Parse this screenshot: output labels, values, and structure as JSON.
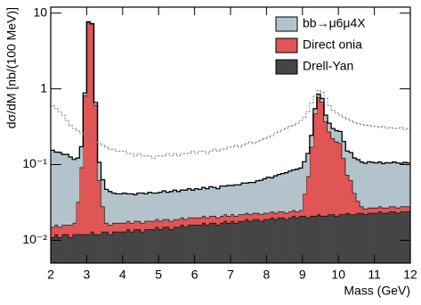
{
  "chart_data": {
    "type": "histogram",
    "xlabel": "Mass (GeV)",
    "ylabel": "dσ/dM [nb/(100 MeV)]",
    "yscale": "log",
    "ylim": [
      0.005,
      12
    ],
    "xlim": [
      2,
      12
    ],
    "yticks": [
      {
        "value": 0.01,
        "label": "10⁻²"
      },
      {
        "value": 0.1,
        "label": "10⁻¹"
      },
      1,
      10
    ],
    "xticks": [
      2,
      3,
      4,
      5,
      6,
      7,
      8,
      9,
      10,
      11,
      12
    ],
    "legend": "top-right",
    "bins": [
      2,
      2.1,
      2.2,
      2.3,
      2.4,
      2.5,
      2.6,
      2.7,
      2.8,
      2.9,
      3,
      3.1,
      3.2,
      3.3,
      3.4,
      3.5,
      3.6,
      3.7,
      3.8,
      3.9,
      4,
      4.1,
      4.2,
      4.3,
      4.4,
      4.5,
      4.6,
      4.7,
      4.8,
      4.9,
      5,
      5.1,
      5.2,
      5.3,
      5.4,
      5.5,
      5.6,
      5.7,
      5.8,
      5.9,
      6,
      6.1,
      6.2,
      6.3,
      6.4,
      6.5,
      6.6,
      6.7,
      6.8,
      6.9,
      7,
      7.1,
      7.2,
      7.3,
      7.4,
      7.5,
      7.6,
      7.7,
      7.8,
      7.9,
      8,
      8.1,
      8.2,
      8.3,
      8.4,
      8.5,
      8.6,
      8.7,
      8.8,
      8.9,
      9,
      9.1,
      9.2,
      9.3,
      9.4,
      9.5,
      9.6,
      9.7,
      9.8,
      9.9,
      10,
      10.1,
      10.2,
      10.3,
      10.4,
      10.5,
      10.6,
      10.7,
      10.8,
      10.9,
      11,
      11.1,
      11.2,
      11.3,
      11.4,
      11.5,
      11.6,
      11.7,
      11.8,
      11.9,
      12
    ],
    "series": [
      {
        "name": "bb→μ6μ4X",
        "color": "#b3c3cc",
        "values": [
          0.14,
          0.13,
          0.13,
          0.12,
          0.12,
          0.11,
          0.1,
          0.09,
          0.08,
          0.07,
          0.07,
          0.06,
          0.05,
          0.045,
          0.035,
          0.03,
          0.028,
          0.025,
          0.024,
          0.024,
          0.025,
          0.023,
          0.024,
          0.022,
          0.024,
          0.025,
          0.023,
          0.025,
          0.024,
          0.023,
          0.025,
          0.026,
          0.024,
          0.026,
          0.027,
          0.025,
          0.026,
          0.027,
          0.028,
          0.026,
          0.028,
          0.027,
          0.029,
          0.028,
          0.03,
          0.029,
          0.028,
          0.031,
          0.03,
          0.032,
          0.031,
          0.033,
          0.032,
          0.035,
          0.034,
          0.036,
          0.035,
          0.038,
          0.04,
          0.042,
          0.045,
          0.043,
          0.048,
          0.05,
          0.052,
          0.055,
          0.058,
          0.06,
          0.063,
          0.065,
          0.068,
          0.07,
          0.072,
          0.075,
          0.078,
          0.075,
          0.078,
          0.08,
          0.077,
          0.08,
          0.082,
          0.08,
          0.078,
          0.082,
          0.08,
          0.083,
          0.08,
          0.078,
          0.082,
          0.08,
          0.078,
          0.08,
          0.076,
          0.079,
          0.077,
          0.08,
          0.078,
          0.076,
          0.079,
          0.077
        ]
      },
      {
        "name": "Direct onia",
        "color": "#e05555",
        "values": [
          0.004,
          0.004,
          0.004,
          0.004,
          0.004,
          0.005,
          0.005,
          0.02,
          0.08,
          0.8,
          7.6,
          7.2,
          0.6,
          0.05,
          0.015,
          0.004,
          0.004,
          0.004,
          0.004,
          0.004,
          0.004,
          0.004,
          0.004,
          0.004,
          0.004,
          0.004,
          0.004,
          0.004,
          0.004,
          0.004,
          0.004,
          0.004,
          0.004,
          0.004,
          0.004,
          0.004,
          0.004,
          0.004,
          0.004,
          0.004,
          0.004,
          0.004,
          0.004,
          0.004,
          0.004,
          0.004,
          0.004,
          0.004,
          0.004,
          0.004,
          0.004,
          0.004,
          0.004,
          0.004,
          0.004,
          0.004,
          0.004,
          0.004,
          0.004,
          0.004,
          0.004,
          0.004,
          0.004,
          0.004,
          0.004,
          0.004,
          0.004,
          0.004,
          0.004,
          0.004,
          0.02,
          0.05,
          0.15,
          0.45,
          0.75,
          0.65,
          0.35,
          0.25,
          0.2,
          0.18,
          0.17,
          0.1,
          0.05,
          0.04,
          0.02,
          0.01,
          0.005,
          0.004,
          0.004,
          0.004,
          0.004,
          0.004,
          0.004,
          0.004,
          0.004,
          0.004,
          0.004,
          0.004,
          0.004,
          0.004
        ]
      },
      {
        "name": "Drell-Yan",
        "color": "#454545",
        "values": [
          0.011,
          0.012,
          0.011,
          0.012,
          0.012,
          0.011,
          0.012,
          0.012,
          0.012,
          0.012,
          0.012,
          0.013,
          0.012,
          0.012,
          0.013,
          0.013,
          0.012,
          0.013,
          0.013,
          0.013,
          0.013,
          0.014,
          0.013,
          0.014,
          0.014,
          0.013,
          0.014,
          0.014,
          0.014,
          0.015,
          0.014,
          0.015,
          0.015,
          0.014,
          0.015,
          0.015,
          0.016,
          0.015,
          0.016,
          0.016,
          0.016,
          0.016,
          0.017,
          0.016,
          0.017,
          0.017,
          0.016,
          0.017,
          0.018,
          0.017,
          0.018,
          0.017,
          0.018,
          0.018,
          0.019,
          0.018,
          0.019,
          0.019,
          0.018,
          0.019,
          0.019,
          0.02,
          0.019,
          0.02,
          0.02,
          0.019,
          0.02,
          0.021,
          0.02,
          0.021,
          0.021,
          0.02,
          0.021,
          0.021,
          0.022,
          0.021,
          0.021,
          0.022,
          0.022,
          0.021,
          0.022,
          0.022,
          0.023,
          0.022,
          0.022,
          0.023,
          0.023,
          0.022,
          0.023,
          0.023,
          0.023,
          0.024,
          0.023,
          0.023,
          0.024,
          0.024,
          0.023,
          0.024,
          0.024,
          0.024
        ]
      },
      {
        "color": "#777777",
        "dashed": true,
        "values": [
          0.6,
          0.55,
          0.5,
          0.45,
          0.38,
          0.33,
          0.3,
          0.28,
          0.26,
          0.25,
          0.25,
          0.22,
          0.2,
          0.19,
          0.18,
          0.17,
          0.16,
          0.16,
          0.15,
          0.15,
          0.15,
          0.14,
          0.14,
          0.13,
          0.14,
          0.13,
          0.13,
          0.13,
          0.12,
          0.13,
          0.13,
          0.13,
          0.14,
          0.13,
          0.14,
          0.13,
          0.14,
          0.14,
          0.14,
          0.15,
          0.14,
          0.15,
          0.15,
          0.14,
          0.15,
          0.16,
          0.15,
          0.16,
          0.16,
          0.17,
          0.17,
          0.18,
          0.17,
          0.18,
          0.19,
          0.2,
          0.19,
          0.2,
          0.21,
          0.22,
          0.23,
          0.24,
          0.26,
          0.27,
          0.29,
          0.3,
          0.32,
          0.33,
          0.35,
          0.38,
          0.42,
          0.5,
          0.65,
          0.8,
          0.95,
          0.9,
          0.75,
          0.6,
          0.52,
          0.48,
          0.45,
          0.42,
          0.4,
          0.38,
          0.36,
          0.35,
          0.34,
          0.33,
          0.33,
          0.32,
          0.32,
          0.31,
          0.32,
          0.3,
          0.31,
          0.3,
          0.3,
          0.31,
          0.29,
          0.3
        ]
      }
    ]
  }
}
